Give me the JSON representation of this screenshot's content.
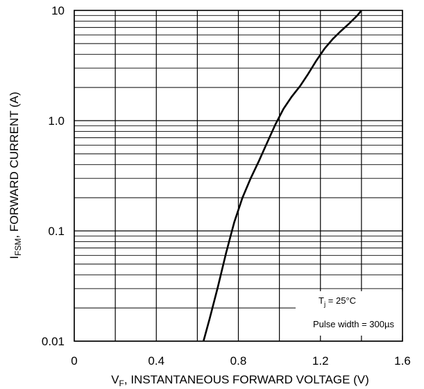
{
  "chart_data": {
    "type": "line",
    "title": "",
    "xlabel": {
      "main": "V",
      "sub": "F",
      "rest": ", INSTANTANEOUS FORWARD VOLTAGE (V)"
    },
    "ylabel": {
      "main": "I",
      "sub": "FSM",
      "rest": ", FORWARD CURRENT (A)"
    },
    "xlim": [
      0,
      1.6
    ],
    "ylim": [
      0.01,
      10
    ],
    "yscale": "log",
    "grid": true,
    "xticks": [
      0,
      0.2,
      0.4,
      0.6,
      0.8,
      1.0,
      1.2,
      1.4,
      1.6
    ],
    "xtick_labels": [
      "0",
      "",
      "0.4",
      "",
      "0.8",
      "",
      "1.2",
      "",
      "1.6"
    ],
    "yticks": [
      0.01,
      0.1,
      1,
      10
    ],
    "ytick_labels": [
      "0.01",
      "0.1",
      "1.0",
      "10"
    ],
    "series": [
      {
        "x": [
          0.63,
          0.66,
          0.7,
          0.74,
          0.78,
          0.82,
          0.86,
          0.9,
          0.94,
          0.98,
          1.02,
          1.06,
          1.1,
          1.14,
          1.18,
          1.22,
          1.26,
          1.3,
          1.34,
          1.38,
          1.4
        ],
        "y": [
          0.01,
          0.016,
          0.031,
          0.063,
          0.12,
          0.2,
          0.3,
          0.43,
          0.63,
          0.92,
          1.28,
          1.65,
          2.05,
          2.65,
          3.5,
          4.5,
          5.5,
          6.5,
          7.6,
          9.0,
          10.0
        ]
      }
    ],
    "annotation": {
      "line1": {
        "main": "T",
        "sub": "j",
        "rest": " = 25°C"
      },
      "line2": "Pulse width = 300µs"
    }
  }
}
